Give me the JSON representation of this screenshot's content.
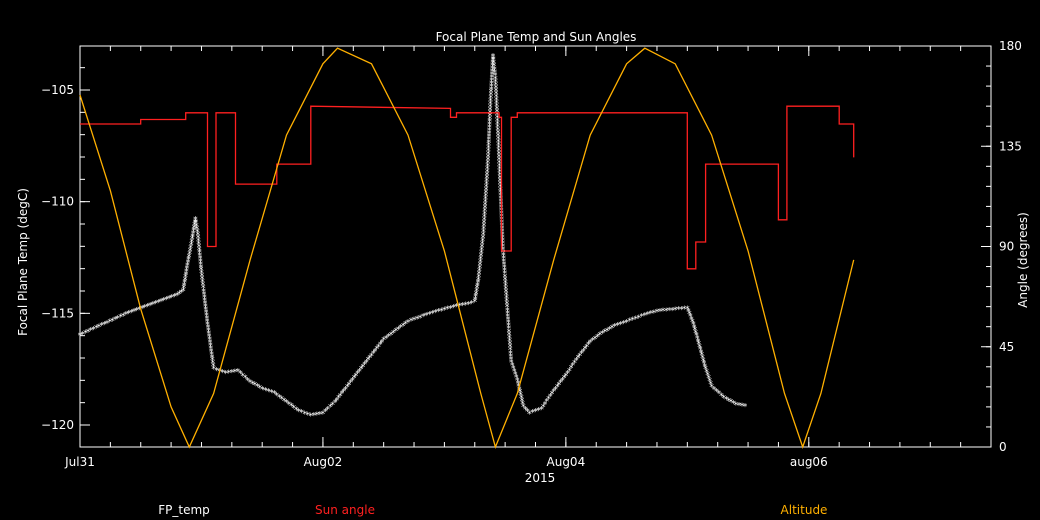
{
  "chart_data": {
    "type": "line",
    "title": "Focal Plane Temp and Sun Angles",
    "xlabel": "2015",
    "ylabel": "Focal Plane Temp (degC)",
    "y2label": "Angle (degrees)",
    "x_range_days": [
      0,
      7.5
    ],
    "ylim": [
      -121,
      -102.3
    ],
    "y2lim": [
      0,
      180
    ],
    "x_ticks": [
      {
        "day": 0,
        "label": "Jul31"
      },
      {
        "day": 2,
        "label": "Aug02"
      },
      {
        "day": 4,
        "label": "Aug04"
      },
      {
        "day": 6,
        "label": "aug06"
      }
    ],
    "y_ticks": [
      -105,
      -110,
      -115,
      -120
    ],
    "y2_ticks": [
      180,
      135,
      90,
      45,
      0
    ],
    "legend": [
      {
        "name": "FP_temp",
        "color": "#ffffff"
      },
      {
        "name": "Sun angle",
        "color": "#ff2020"
      },
      {
        "name": "Altitude",
        "color": "#ffb000"
      }
    ],
    "series": [
      {
        "name": "FP_temp",
        "color": "#ffffff",
        "style": "markers",
        "points": [
          [
            0,
            -116
          ],
          [
            0.2,
            -115.5
          ],
          [
            0.4,
            -115
          ],
          [
            0.6,
            -114.6
          ],
          [
            0.8,
            -114.2
          ],
          [
            0.85,
            -114
          ],
          [
            0.88,
            -113
          ],
          [
            0.92,
            -111.8
          ],
          [
            0.95,
            -110.8
          ],
          [
            0.97,
            -111.5
          ],
          [
            1.0,
            -113.2
          ],
          [
            1.05,
            -115.5
          ],
          [
            1.1,
            -117.5
          ],
          [
            1.2,
            -117.7
          ],
          [
            1.3,
            -117.6
          ],
          [
            1.4,
            -118.1
          ],
          [
            1.5,
            -118.4
          ],
          [
            1.6,
            -118.6
          ],
          [
            1.7,
            -119.0
          ],
          [
            1.8,
            -119.4
          ],
          [
            1.9,
            -119.6
          ],
          [
            2.0,
            -119.5
          ],
          [
            2.1,
            -119.0
          ],
          [
            2.2,
            -118.3
          ],
          [
            2.3,
            -117.6
          ],
          [
            2.4,
            -116.9
          ],
          [
            2.5,
            -116.2
          ],
          [
            2.6,
            -115.8
          ],
          [
            2.7,
            -115.4
          ],
          [
            2.8,
            -115.2
          ],
          [
            2.9,
            -115.0
          ],
          [
            3.0,
            -114.85
          ],
          [
            3.1,
            -114.7
          ],
          [
            3.2,
            -114.6
          ],
          [
            3.25,
            -114.5
          ],
          [
            3.28,
            -113.5
          ],
          [
            3.32,
            -111.5
          ],
          [
            3.36,
            -108
          ],
          [
            3.38,
            -105.5
          ],
          [
            3.4,
            -103.5
          ],
          [
            3.42,
            -104.5
          ],
          [
            3.45,
            -108
          ],
          [
            3.48,
            -112
          ],
          [
            3.52,
            -115
          ],
          [
            3.55,
            -117.2
          ],
          [
            3.6,
            -118
          ],
          [
            3.65,
            -119.2
          ],
          [
            3.7,
            -119.5
          ],
          [
            3.8,
            -119.3
          ],
          [
            3.9,
            -118.5
          ],
          [
            4.0,
            -117.8
          ],
          [
            4.1,
            -117
          ],
          [
            4.2,
            -116.3
          ],
          [
            4.3,
            -115.9
          ],
          [
            4.4,
            -115.6
          ],
          [
            4.5,
            -115.4
          ],
          [
            4.6,
            -115.2
          ],
          [
            4.7,
            -115.0
          ],
          [
            4.8,
            -114.9
          ],
          [
            4.9,
            -114.85
          ],
          [
            5.0,
            -114.8
          ],
          [
            5.05,
            -115.5
          ],
          [
            5.1,
            -116.5
          ],
          [
            5.15,
            -117.5
          ],
          [
            5.2,
            -118.3
          ],
          [
            5.3,
            -118.8
          ],
          [
            5.4,
            -119.1
          ],
          [
            5.5,
            -119.2
          ]
        ]
      },
      {
        "name": "Sun angle",
        "color": "#ff2020",
        "style": "step",
        "points": [
          [
            0,
            145
          ],
          [
            0.5,
            145
          ],
          [
            0.5,
            147
          ],
          [
            0.87,
            147
          ],
          [
            0.87,
            150
          ],
          [
            1.05,
            150
          ],
          [
            1.05,
            90
          ],
          [
            1.12,
            90
          ],
          [
            1.12,
            150
          ],
          [
            1.28,
            150
          ],
          [
            1.28,
            118
          ],
          [
            1.62,
            118
          ],
          [
            1.62,
            127
          ],
          [
            1.9,
            127
          ],
          [
            1.9,
            153
          ],
          [
            3.05,
            152
          ],
          [
            3.05,
            148
          ],
          [
            3.1,
            148
          ],
          [
            3.1,
            150
          ],
          [
            3.45,
            150
          ],
          [
            3.45,
            148
          ],
          [
            3.47,
            148
          ],
          [
            3.47,
            88
          ],
          [
            3.55,
            88
          ],
          [
            3.55,
            148
          ],
          [
            3.6,
            148
          ],
          [
            3.6,
            150
          ],
          [
            5.0,
            150
          ],
          [
            5.0,
            80
          ],
          [
            5.07,
            80
          ],
          [
            5.07,
            92
          ],
          [
            5.15,
            92
          ],
          [
            5.15,
            127
          ],
          [
            5.75,
            127
          ],
          [
            5.75,
            102
          ],
          [
            5.82,
            102
          ],
          [
            5.82,
            153
          ],
          [
            6.25,
            153
          ],
          [
            6.25,
            145
          ],
          [
            6.37,
            145
          ],
          [
            6.37,
            130
          ]
        ]
      },
      {
        "name": "Altitude",
        "color": "#ffb000",
        "style": "line",
        "points": [
          [
            0,
            158
          ],
          [
            0.25,
            115
          ],
          [
            0.5,
            62
          ],
          [
            0.75,
            18
          ],
          [
            0.9,
            0
          ],
          [
            1.1,
            24
          ],
          [
            1.4,
            84
          ],
          [
            1.7,
            140
          ],
          [
            2.0,
            172
          ],
          [
            2.12,
            179
          ],
          [
            2.4,
            172
          ],
          [
            2.7,
            140
          ],
          [
            3.0,
            88
          ],
          [
            3.3,
            24
          ],
          [
            3.42,
            0
          ],
          [
            3.6,
            24
          ],
          [
            3.9,
            84
          ],
          [
            4.2,
            140
          ],
          [
            4.5,
            172
          ],
          [
            4.65,
            179
          ],
          [
            4.9,
            172
          ],
          [
            5.2,
            140
          ],
          [
            5.5,
            88
          ],
          [
            5.8,
            24
          ],
          [
            5.95,
            0
          ],
          [
            6.1,
            24
          ],
          [
            6.37,
            84
          ]
        ]
      }
    ]
  }
}
